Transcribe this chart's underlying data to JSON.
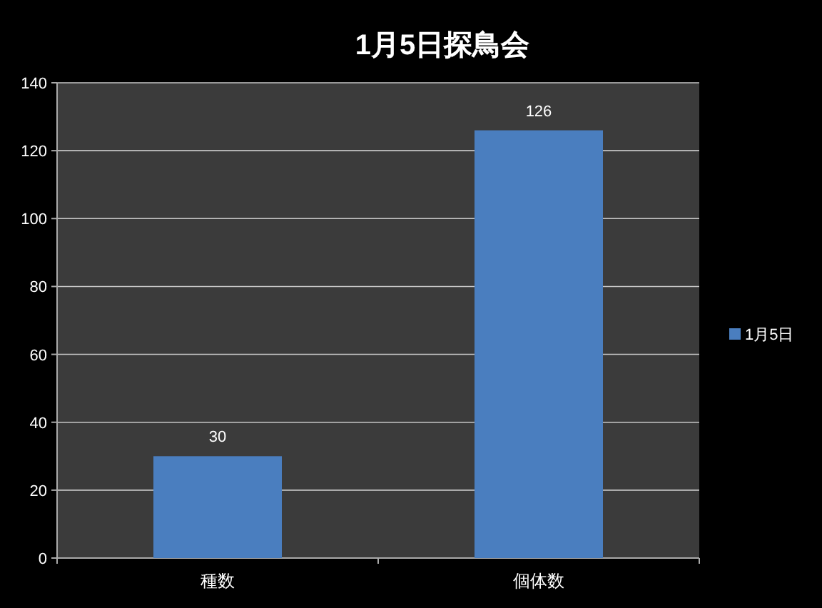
{
  "chart_data": {
    "type": "bar",
    "title": "1月5日探鳥会",
    "categories": [
      "種数",
      "個体数"
    ],
    "series": [
      {
        "name": "1月5日",
        "color": "#4a7ebf",
        "values": [
          30,
          126
        ]
      }
    ],
    "ylim": [
      0,
      140
    ],
    "yticks": [
      0,
      20,
      40,
      60,
      80,
      100,
      120,
      140
    ],
    "grid": "y",
    "legend": "right",
    "data_labels": true
  }
}
